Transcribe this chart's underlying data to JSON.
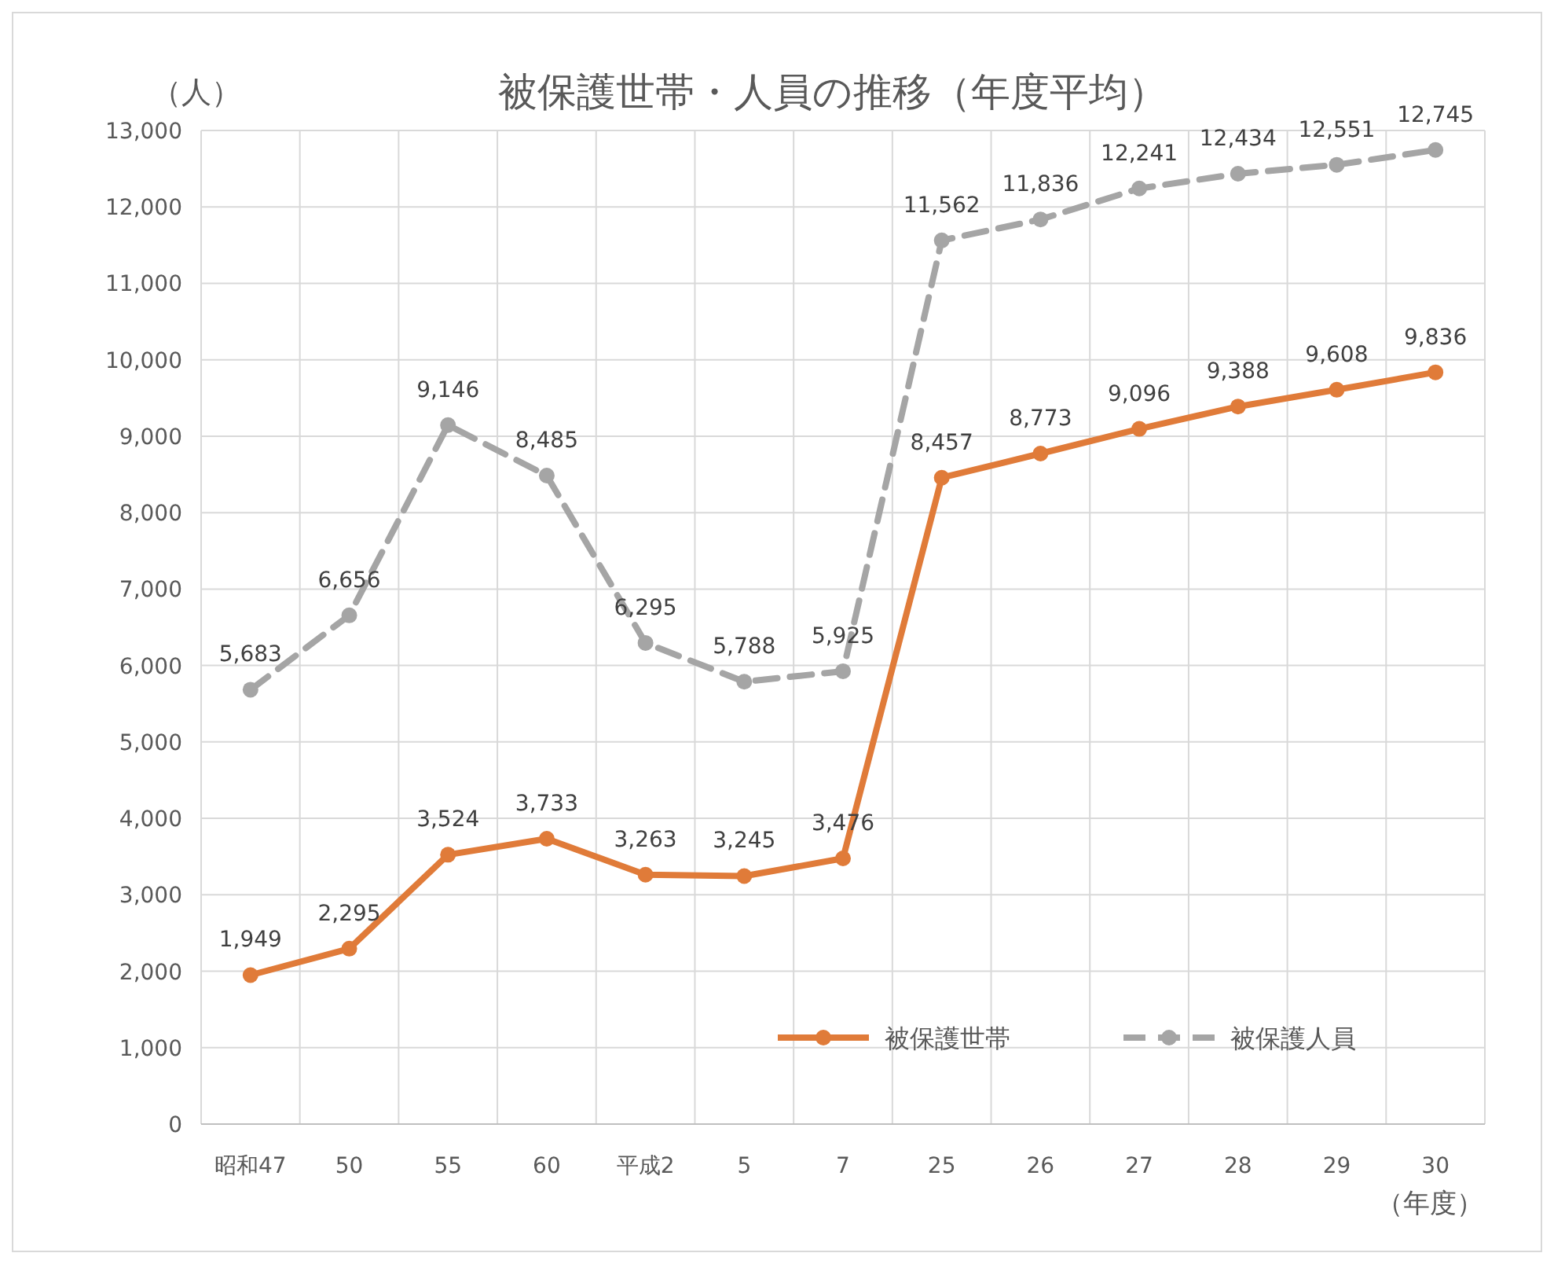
{
  "chart_data": {
    "type": "line",
    "title": "被保護世帯・人員の推移（年度平均）",
    "ylabel": "（人）",
    "xlabel": "（年度）",
    "categories": [
      "昭和47",
      "50",
      "55",
      "60",
      "平成2",
      "5",
      "7",
      "25",
      "26",
      "27",
      "28",
      "29",
      "30"
    ],
    "ylim": [
      0,
      13000
    ],
    "yticks": [
      0,
      {
        "value": 1000,
        "label": "1,000"
      },
      {
        "value": 2000,
        "label": "2,000"
      },
      {
        "value": 3000,
        "label": "3,000"
      },
      {
        "value": 4000,
        "label": "4,000"
      },
      {
        "value": 5000,
        "label": "5,000"
      },
      {
        "value": 6000,
        "label": "6,000"
      },
      {
        "value": 7000,
        "label": "7,000"
      },
      {
        "value": 8000,
        "label": "8,000"
      },
      {
        "value": 9000,
        "label": "9,000"
      },
      {
        "value": 10000,
        "label": "10,000"
      },
      {
        "value": 11000,
        "label": "11,000"
      },
      {
        "value": 12000,
        "label": "12,000"
      },
      {
        "value": 13000,
        "label": "13,000"
      }
    ],
    "grid": true,
    "legend": "bottom right",
    "marker": "circle",
    "series": [
      {
        "name": "被保護世帯",
        "color": "#e07b39",
        "line_style": "solid",
        "values": [
          1949,
          2295,
          3524,
          3733,
          3263,
          3245,
          3476,
          8457,
          8773,
          9096,
          9388,
          9608,
          9836
        ],
        "value_labels": [
          "1,949",
          "2,295",
          "3,524",
          "3,733",
          "3,263",
          "3,245",
          "3,476",
          "8,457",
          "8,773",
          "9,096",
          "9,388",
          "9,608",
          "9,836"
        ]
      },
      {
        "name": "被保護人員",
        "color": "#a5a5a5",
        "line_style": "dashed",
        "values": [
          5683,
          6656,
          9146,
          8485,
          6295,
          5788,
          5925,
          11562,
          11836,
          12241,
          12434,
          12551,
          12745
        ],
        "value_labels": [
          "5,683",
          "6,656",
          "9,146",
          "8,485",
          "6,295",
          "5,788",
          "5,925",
          "11,562",
          "11,836",
          "12,241",
          "12,434",
          "12,551",
          "12,745"
        ]
      }
    ]
  }
}
